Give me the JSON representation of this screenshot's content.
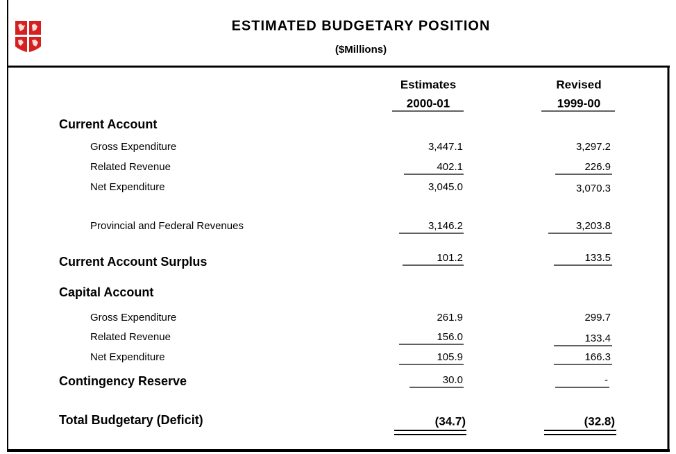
{
  "header": {
    "title": "ESTIMATED  BUDGETARY  POSITION",
    "subtitle": "($Millions)"
  },
  "columns": [
    {
      "line1": "Estimates",
      "line2": "2000-01"
    },
    {
      "line1": "Revised",
      "line2": "1999-00"
    }
  ],
  "rows": [
    {
      "label": "Current Account"
    },
    {
      "label": "Gross Expenditure",
      "values": [
        "3,447.1",
        "3,297.2"
      ]
    },
    {
      "label": "Related Revenue",
      "values": [
        "402.1",
        "226.9"
      ]
    },
    {
      "label": "Net Expenditure",
      "values": [
        "3,045.0",
        "3,070.3"
      ]
    },
    {
      "label": "Provincial and Federal Revenues",
      "values": [
        "3,146.2",
        "3,203.8"
      ]
    },
    {
      "label": "Current Account Surplus",
      "values": [
        "101.2",
        "133.5"
      ]
    },
    {
      "label": "Capital Account"
    },
    {
      "label": "Gross Expenditure",
      "values": [
        "261.9",
        "299.7"
      ]
    },
    {
      "label": "Related Revenue",
      "values": [
        "156.0",
        "133.4"
      ]
    },
    {
      "label": "Net Expenditure",
      "values": [
        "105.9",
        "166.3"
      ]
    },
    {
      "label": "Contingency Reserve",
      "values": [
        "30.0",
        "-"
      ]
    },
    {
      "label": "Total Budgetary (Deficit)",
      "values": [
        "(34.7)",
        "(32.8)"
      ]
    }
  ]
}
